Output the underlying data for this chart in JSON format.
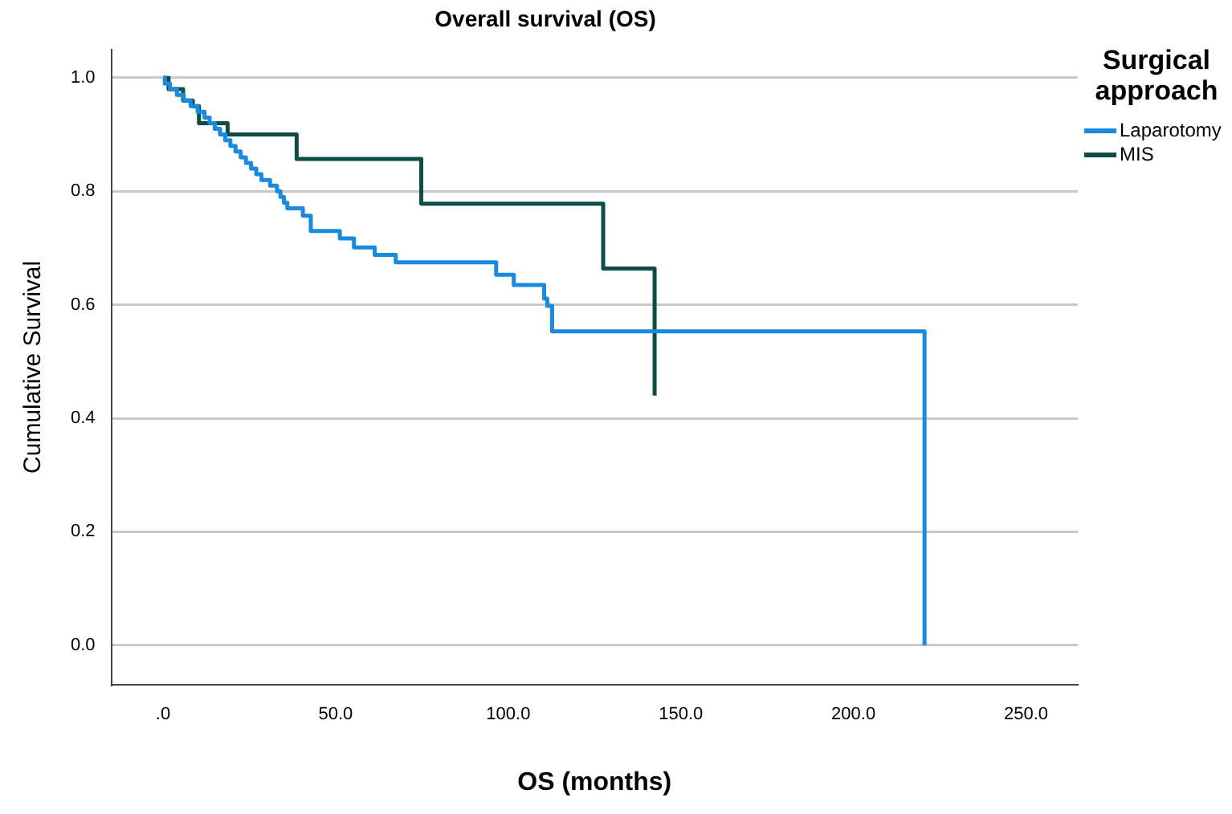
{
  "chart_data": {
    "type": "step",
    "title": "Overall survival (OS)",
    "xlabel": "OS (months)",
    "ylabel": "Cumulative Survival",
    "legend_title": "Surgical approach",
    "legend": "top right",
    "grid": "y",
    "xlim": [
      -15,
      265
    ],
    "xticks": [
      {
        "value": 0,
        "label": ".0"
      },
      {
        "value": 50,
        "label": "50.0"
      },
      {
        "value": 100,
        "label": "100.0"
      },
      {
        "value": 150,
        "label": "150.0"
      },
      {
        "value": 200,
        "label": "200.0"
      },
      {
        "value": 250,
        "label": "250.0"
      }
    ],
    "ylim": [
      -0.07,
      1.05
    ],
    "yticks": [
      {
        "value": 0,
        "label": "0.0"
      },
      {
        "value": 0.2,
        "label": "0.2"
      },
      {
        "value": 0.4,
        "label": "0.4"
      },
      {
        "value": 0.6,
        "label": "0.6"
      },
      {
        "value": 0.8,
        "label": "0.8"
      },
      {
        "value": 1,
        "label": "1.0"
      }
    ],
    "series": [
      {
        "name": "Laparotomy",
        "color": "#1a8ae0",
        "x": [
          0,
          0.5,
          2,
          4,
          6,
          8,
          10,
          12,
          13.5,
          15,
          16.5,
          18,
          19.5,
          21,
          22.5,
          24,
          25.5,
          27,
          28.5,
          31,
          33,
          34,
          35,
          36,
          40.5,
          42.8,
          51.2,
          55.3,
          61.3,
          67.4,
          96.5,
          101.6,
          110.4,
          111.3,
          112.7,
          220.6
        ],
        "values": [
          1,
          0.99,
          0.98,
          0.97,
          0.96,
          0.95,
          0.94,
          0.93,
          0.92,
          0.91,
          0.9,
          0.89,
          0.88,
          0.87,
          0.86,
          0.85,
          0.84,
          0.83,
          0.82,
          0.81,
          0.8,
          0.79,
          0.78,
          0.77,
          0.757,
          0.73,
          0.717,
          0.701,
          0.688,
          0.675,
          0.653,
          0.635,
          0.611,
          0.598,
          0.553,
          0
        ]
      },
      {
        "name": "MIS",
        "color": "#0d4d45",
        "x": [
          0,
          1.6,
          5.8,
          8.6,
          10.4,
          18.7,
          38.7,
          74.8,
          127.5,
          142.4
        ],
        "values": [
          1,
          0.98,
          0.96,
          0.95,
          0.92,
          0.9,
          0.857,
          0.778,
          0.664,
          0.44
        ]
      }
    ]
  }
}
